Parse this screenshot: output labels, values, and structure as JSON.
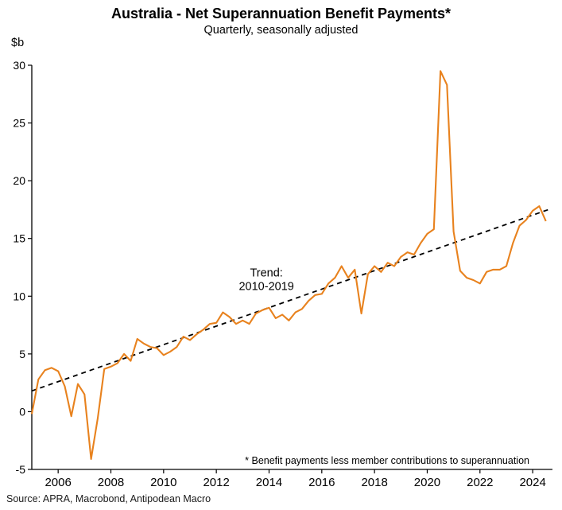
{
  "header": {
    "title": "Australia - Net Superannuation Benefit Payments*",
    "subtitle": "Quarterly, seasonally adjusted",
    "y_unit_label": "$b"
  },
  "footer": {
    "source": "Source: APRA, Macrobond, Antipodean Macro"
  },
  "chart_data": {
    "type": "line",
    "title": "Australia - Net Superannuation Benefit Payments*",
    "subtitle": "Quarterly, seasonally adjusted",
    "xlabel": "",
    "ylabel": "$b",
    "ylim": [
      -5,
      30
    ],
    "xlim": [
      2005,
      2024.75
    ],
    "y_ticks": [
      -5,
      0,
      5,
      10,
      15,
      20,
      25,
      30
    ],
    "x_ticks": [
      2006,
      2008,
      2010,
      2012,
      2014,
      2016,
      2018,
      2020,
      2022,
      2024
    ],
    "grid": false,
    "legend_position": "none",
    "footnote": "* Benefit payments less member contributions to superannuation",
    "annotation": {
      "lines": [
        "Trend:",
        "2010-2019"
      ],
      "x": 2013.9,
      "y": 11.7
    },
    "series": [
      {
        "name": "Net superannuation benefit payments (quarterly, seasonally adjusted)",
        "color": "#E8821E",
        "line_style": "solid",
        "x_start": 2005.0,
        "x_step": 0.25,
        "values": [
          -0.2,
          2.8,
          3.6,
          3.8,
          3.5,
          2.2,
          -0.4,
          2.4,
          1.5,
          -4.1,
          -0.6,
          3.7,
          3.9,
          4.2,
          5.0,
          4.4,
          6.3,
          5.9,
          5.6,
          5.5,
          4.9,
          5.2,
          5.6,
          6.5,
          6.2,
          6.7,
          7.1,
          7.6,
          7.7,
          8.6,
          8.2,
          7.6,
          7.9,
          7.6,
          8.5,
          8.8,
          9.0,
          8.1,
          8.4,
          7.9,
          8.6,
          8.9,
          9.6,
          10.1,
          10.2,
          11.1,
          11.6,
          12.6,
          11.6,
          12.3,
          8.5,
          11.9,
          12.6,
          12.1,
          12.9,
          12.6,
          13.4,
          13.8,
          13.6,
          14.6,
          15.4,
          15.8,
          29.5,
          28.3,
          15.6,
          12.2,
          11.6,
          11.4,
          11.1,
          12.1,
          12.3,
          12.3,
          12.6,
          14.6,
          16.1,
          16.6,
          17.4,
          17.8,
          16.5
        ]
      },
      {
        "name": "Trend: 2010-2019",
        "color": "#000000",
        "line_style": "dashed",
        "x": [
          2005.0,
          2024.6
        ],
        "y": [
          1.8,
          17.5
        ]
      }
    ]
  }
}
